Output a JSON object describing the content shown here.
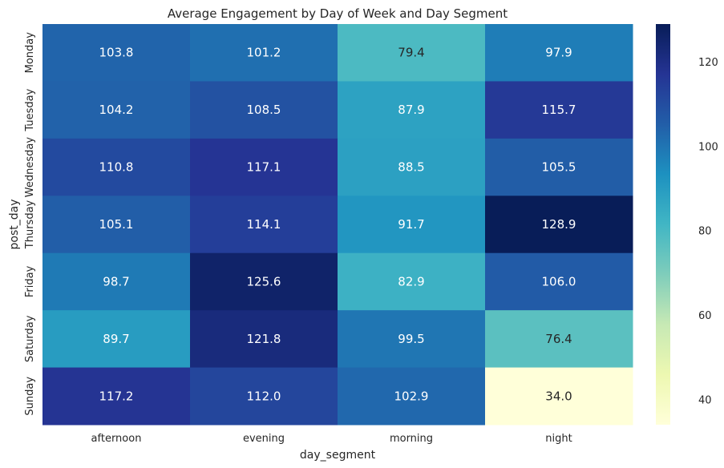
{
  "chart_data": {
    "type": "heatmap",
    "title": "Average Engagement by Day of Week and Day Segment",
    "xlabel": "day_segment",
    "ylabel": "post_day",
    "x_categories": [
      "afternoon",
      "evening",
      "morning",
      "night"
    ],
    "y_categories": [
      "Monday",
      "Tuesday",
      "Wednesday",
      "Thursday",
      "Friday",
      "Saturday",
      "Sunday"
    ],
    "values": [
      [
        103.8,
        101.2,
        79.4,
        97.9
      ],
      [
        104.2,
        108.5,
        87.9,
        115.7
      ],
      [
        110.8,
        117.1,
        88.5,
        105.5
      ],
      [
        105.1,
        114.1,
        91.7,
        128.9
      ],
      [
        98.7,
        125.6,
        82.9,
        106.0
      ],
      [
        89.7,
        121.8,
        99.5,
        76.4
      ],
      [
        117.2,
        112.0,
        102.9,
        34.0
      ]
    ],
    "colormap": "YlGnBu",
    "vmin": 34.0,
    "vmax": 128.9,
    "colorbar_ticks": [
      40,
      60,
      80,
      100,
      120
    ]
  }
}
